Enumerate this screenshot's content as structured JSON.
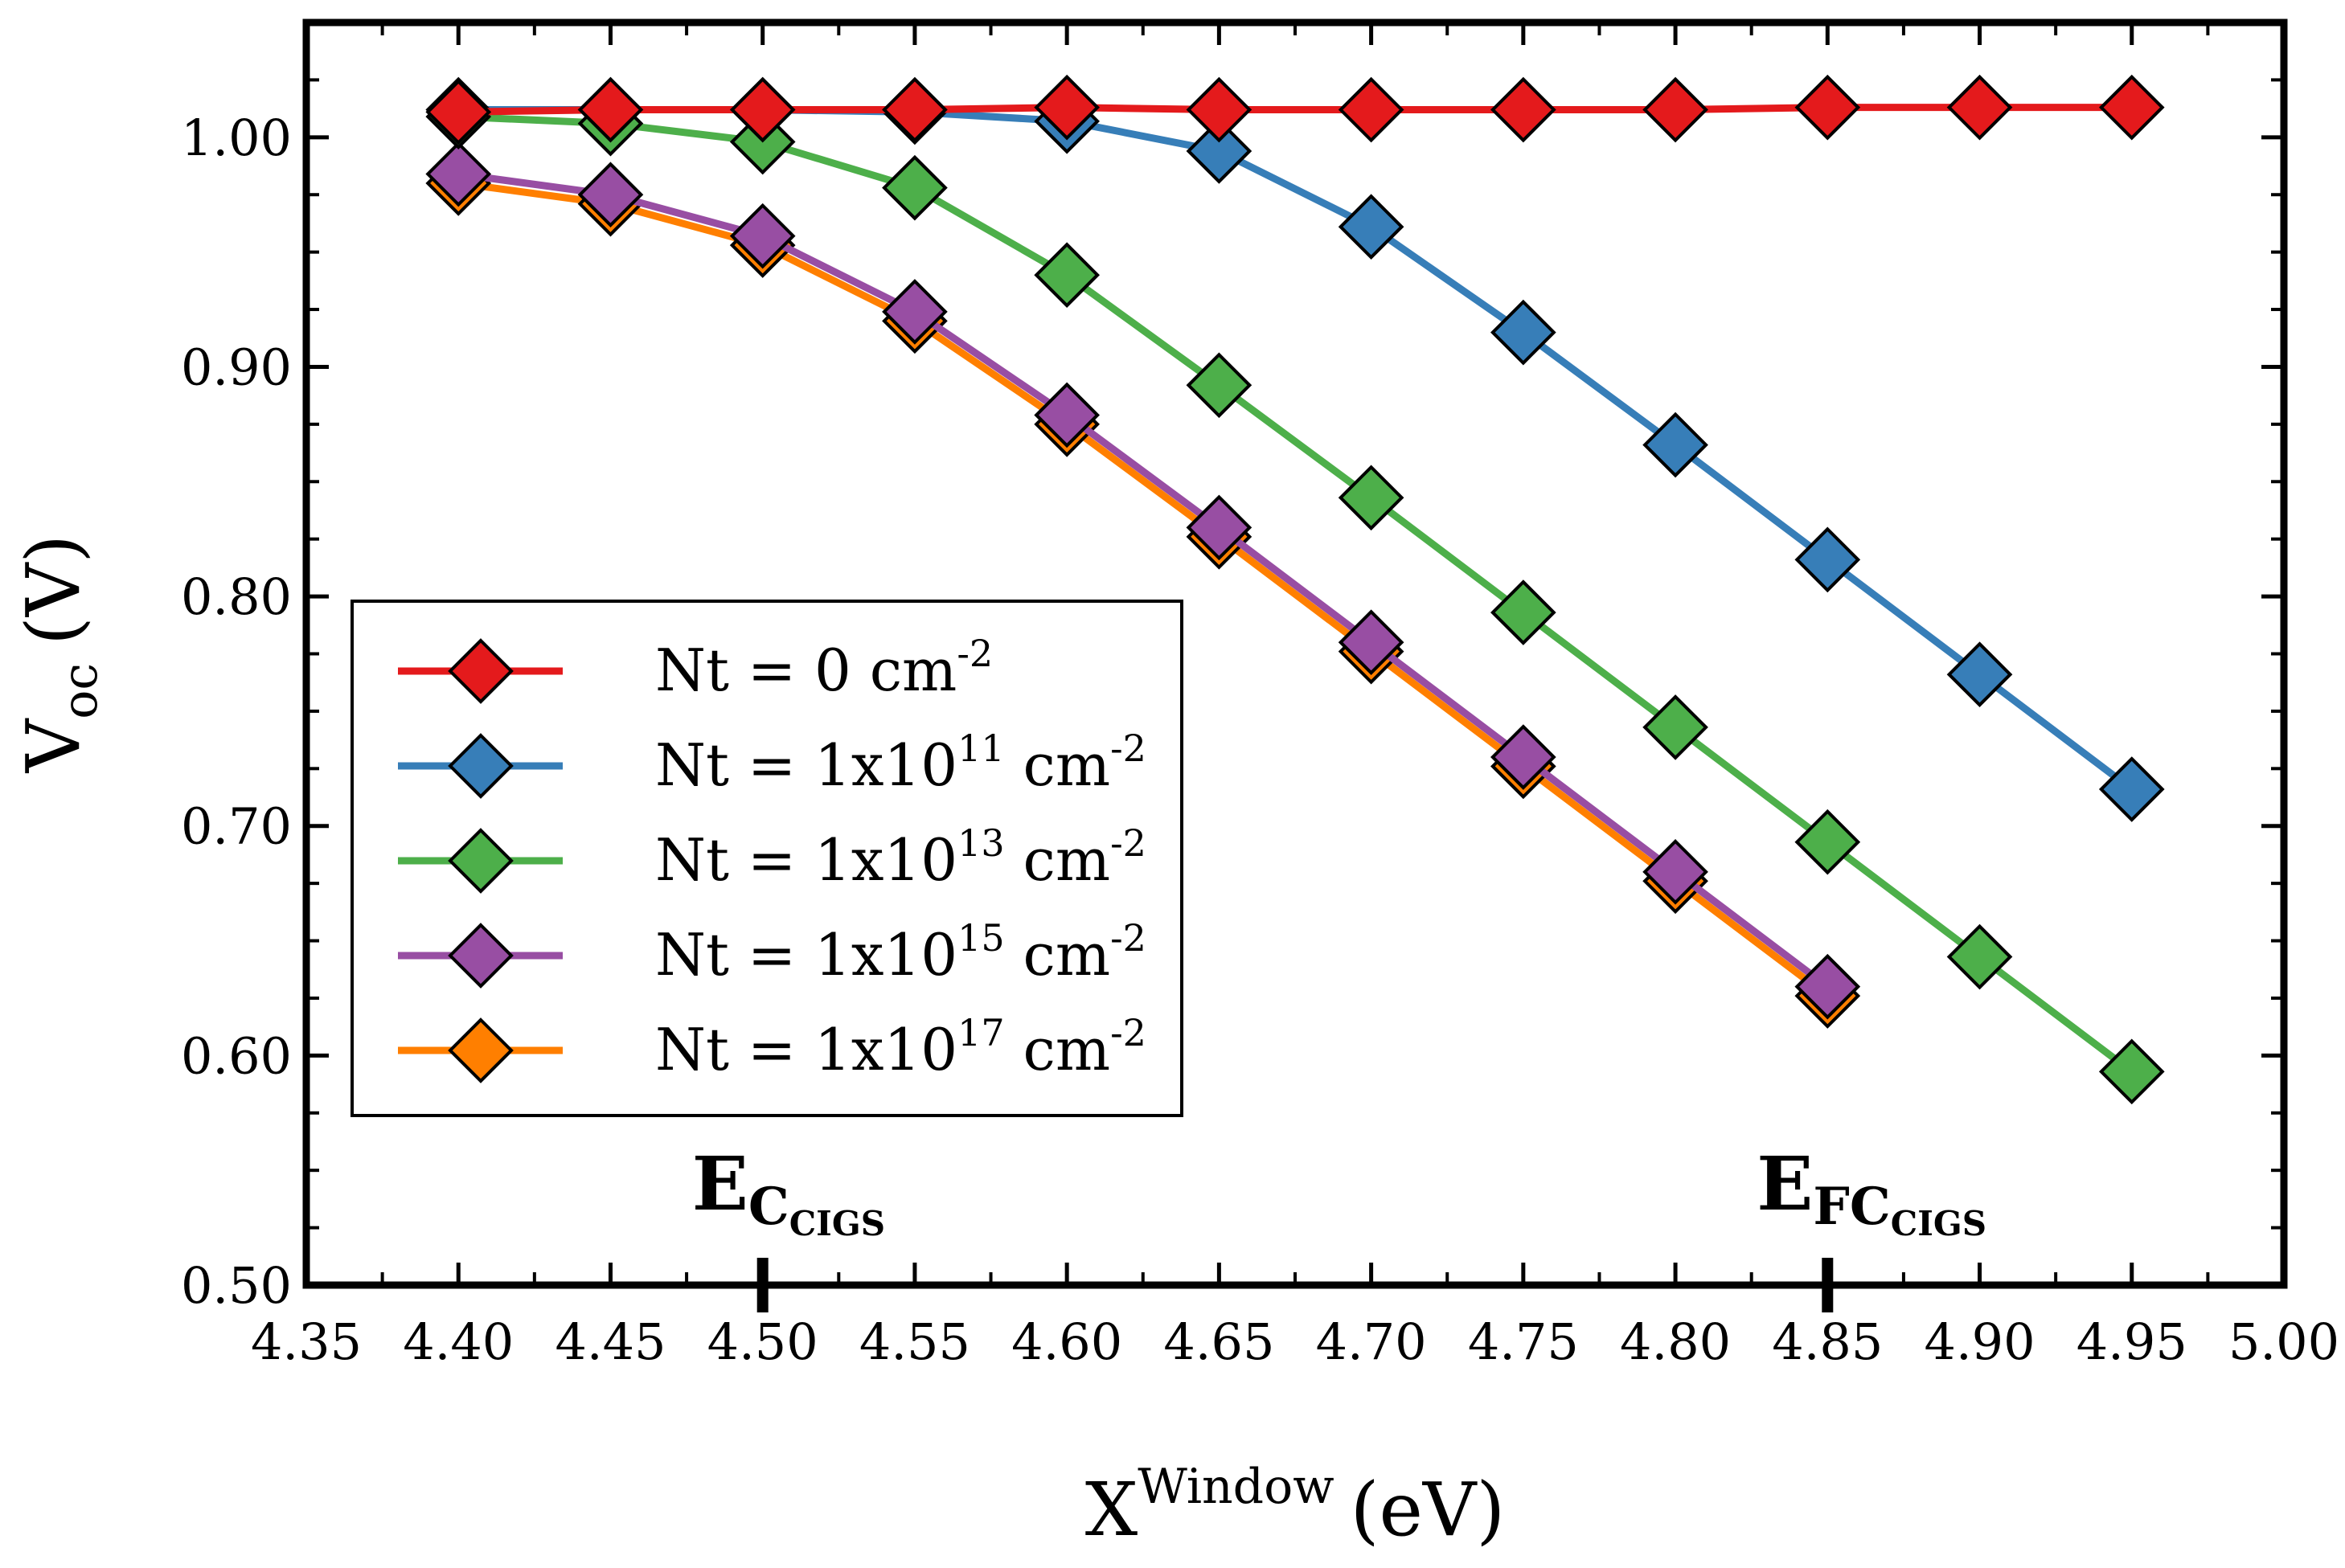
{
  "chart_data": {
    "type": "line",
    "title": "",
    "xlabel": {
      "main": "X",
      "sup": "Window",
      "unit": "(eV)"
    },
    "ylabel": {
      "main": "V",
      "sub": "oc",
      "unit": "(V)"
    },
    "xlim": [
      4.35,
      5.0
    ],
    "ylim": [
      0.5,
      1.05
    ],
    "xticks": [
      4.35,
      4.4,
      4.45,
      4.5,
      4.55,
      4.6,
      4.65,
      4.7,
      4.75,
      4.8,
      4.85,
      4.9,
      4.95,
      5.0
    ],
    "xtick_labels": [
      "4.35",
      "4.40",
      "4.45",
      "4.50",
      "4.55",
      "4.60",
      "4.65",
      "4.70",
      "4.75",
      "4.80",
      "4.85",
      "4.90",
      "4.95",
      "5.00"
    ],
    "yticks": [
      0.5,
      0.6,
      0.7,
      0.8,
      0.9,
      1.0
    ],
    "ytick_labels": [
      "0.50",
      "0.60",
      "0.70",
      "0.80",
      "0.90",
      "1.00"
    ],
    "grid": false,
    "legend_position": "center-left",
    "series": [
      {
        "name": "Nt = 0 cm-2",
        "label_prefix": "Nt = 0 cm",
        "label_mid": "",
        "label_exp": "-2",
        "color": "#e41a1c",
        "x": [
          4.4,
          4.45,
          4.5,
          4.55,
          4.6,
          4.65,
          4.7,
          4.75,
          4.8,
          4.85,
          4.9,
          4.95
        ],
        "values": [
          1.011,
          1.012,
          1.012,
          1.012,
          1.013,
          1.012,
          1.012,
          1.012,
          1.012,
          1.013,
          1.013,
          1.013
        ]
      },
      {
        "name": "Nt = 1x10^11 cm-2",
        "label_prefix": "Nt = 1x10",
        "label_mid": "11",
        "label_exp": "-2",
        "color": "#377eb8",
        "x": [
          4.4,
          4.45,
          4.5,
          4.55,
          4.6,
          4.65,
          4.7,
          4.75,
          4.8,
          4.85,
          4.9,
          4.95
        ],
        "values": [
          1.012,
          1.012,
          1.012,
          1.011,
          1.007,
          0.994,
          0.961,
          0.915,
          0.866,
          0.816,
          0.766,
          0.716
        ]
      },
      {
        "name": "Nt = 1x10^13 cm-2",
        "label_prefix": "Nt = 1x10",
        "label_mid": "13",
        "label_exp": "-2",
        "color": "#4daf4a",
        "x": [
          4.4,
          4.45,
          4.5,
          4.55,
          4.6,
          4.65,
          4.7,
          4.75,
          4.8,
          4.85,
          4.9,
          4.95
        ],
        "values": [
          1.009,
          1.006,
          0.998,
          0.978,
          0.94,
          0.892,
          0.843,
          0.793,
          0.743,
          0.693,
          0.643,
          0.593
        ]
      },
      {
        "name": "Nt = 1x10^15 cm-2",
        "label_prefix": "Nt = 1x10",
        "label_mid": "15",
        "label_exp": "-2",
        "color": "#984ea3",
        "x": [
          4.4,
          4.45,
          4.5,
          4.55,
          4.6,
          4.65,
          4.7,
          4.75,
          4.8,
          4.85
        ],
        "values": [
          0.984,
          0.975,
          0.957,
          0.924,
          0.879,
          0.83,
          0.78,
          0.73,
          0.68,
          0.63
        ]
      },
      {
        "name": "Nt = 1x10^17 cm-2",
        "label_prefix": "Nt = 1x10",
        "label_mid": "17",
        "label_exp": "-2",
        "color": "#ff7f00",
        "x": [
          4.4,
          4.45,
          4.5,
          4.55,
          4.6,
          4.65,
          4.7,
          4.75,
          4.8,
          4.85
        ],
        "values": [
          0.98,
          0.971,
          0.953,
          0.92,
          0.875,
          0.826,
          0.776,
          0.726,
          0.676,
          0.626
        ]
      }
    ],
    "annotations": [
      {
        "main": "E",
        "sub": "C",
        "subsub": "CIGS",
        "x": 4.5
      },
      {
        "main": "E",
        "sub": "FC",
        "subsub": "CIGS",
        "x": 4.85
      }
    ]
  }
}
